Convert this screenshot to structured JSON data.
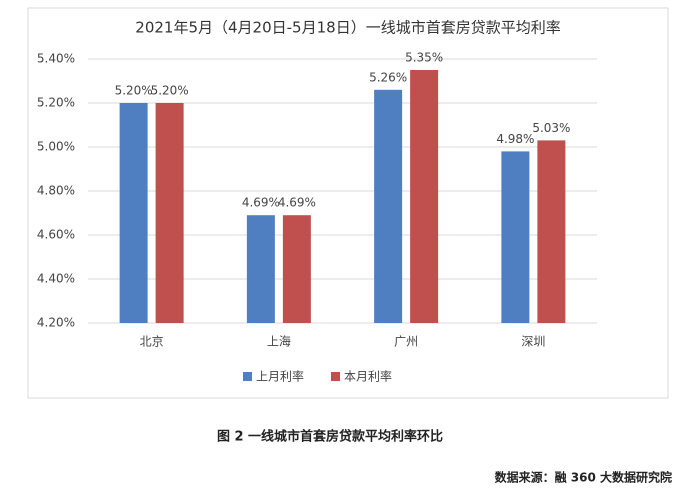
{
  "chart_data": {
    "type": "bar",
    "title": "2021年5月（4月20日-5月18日）一线城市首套房贷款平均利率",
    "categories": [
      "北京",
      "上海",
      "广州",
      "深圳"
    ],
    "series": [
      {
        "name": "上月利率",
        "color": "#4f7fc0",
        "values": [
          5.2,
          4.69,
          5.26,
          4.98
        ],
        "value_labels": [
          "5.20%",
          "4.69%",
          "5.26%",
          "4.98%"
        ]
      },
      {
        "name": "本月利率",
        "color": "#c0504d",
        "values": [
          5.2,
          4.69,
          5.35,
          5.03
        ],
        "value_labels": [
          "5.20%",
          "4.69%",
          "5.35%",
          "5.03%"
        ]
      }
    ],
    "ylim": [
      4.2,
      5.4
    ],
    "yticks": [
      {
        "value": 4.2,
        "label": "4.20%"
      },
      {
        "value": 4.4,
        "label": "4.40%"
      },
      {
        "value": 4.6,
        "label": "4.60%"
      },
      {
        "value": 4.8,
        "label": "4.80%"
      },
      {
        "value": 5.0,
        "label": "5.00%"
      },
      {
        "value": 5.2,
        "label": "5.20%"
      },
      {
        "value": 5.4,
        "label": "5.40%"
      }
    ],
    "grid": true,
    "legend": "bottom",
    "caption": "图 2 一线城市首套房贷款平均利率环比",
    "source": "数据来源：融 360 大数据研究院"
  }
}
